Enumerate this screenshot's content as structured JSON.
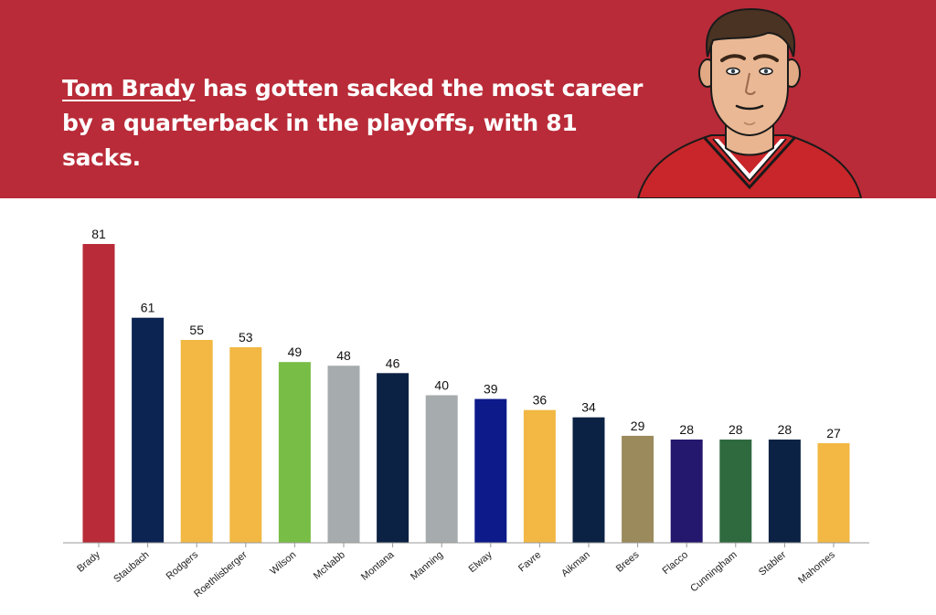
{
  "header": {
    "headline_name": "Tom Brady",
    "headline_rest": " has gotten sacked the most career by a quarterback in the playoffs, with 81 sacks.",
    "background_color": "#b92b38",
    "portrait": "tom-brady-illustration"
  },
  "chart_data": {
    "type": "bar",
    "title": "",
    "xlabel": "",
    "ylabel": "",
    "ylim": [
      0,
      85
    ],
    "grid": false,
    "categories": [
      "Brady",
      "Staubach",
      "Rodgers",
      "Roethlisberger",
      "Wilson",
      "McNabb",
      "Montana",
      "Manning",
      "Elway",
      "Favre",
      "Aikman",
      "Brees",
      "Flacco",
      "Cunningham",
      "Stabler",
      "Mahomes"
    ],
    "values": [
      81,
      61,
      55,
      53,
      49,
      48,
      46,
      40,
      39,
      36,
      34,
      29,
      28,
      28,
      28,
      27
    ],
    "colors": [
      "#b92b38",
      "#0c2452",
      "#f2b843",
      "#f2b843",
      "#78bd45",
      "#a6abae",
      "#0c2244",
      "#a6abae",
      "#0c1a8a",
      "#f2b843",
      "#0c2244",
      "#9b8a5c",
      "#24176e",
      "#2e6a3e",
      "#0c2244",
      "#f2b843"
    ]
  }
}
